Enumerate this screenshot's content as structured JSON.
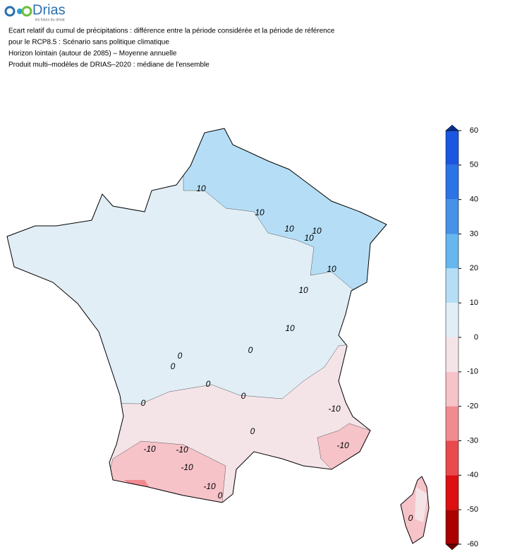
{
  "logo": {
    "name": "Drias",
    "tagline": "les futurs du climat"
  },
  "header": {
    "lines": [
      "Ecart relatif du cumul de précipitations : différence entre la période considérée et la période de référence",
      "pour le RCP8.5 : Scénario sans politique climatique",
      "Horizon lointain (autour de 2085) – Moyenne annuelle",
      "Produit multi–modèles de DRIAS–2020 : médiane de l'ensemble"
    ]
  },
  "colorbar": {
    "ticks": [
      60,
      50,
      40,
      30,
      20,
      10,
      0,
      -10,
      -20,
      -30,
      -40,
      -50,
      -60
    ],
    "colors": [
      "#1a56e0",
      "#2b74e6",
      "#4592e6",
      "#67b6ee",
      "#b5def6",
      "#e1eef6",
      "#f4e4e8",
      "#f6c3c9",
      "#f08b90",
      "#e94a4d",
      "#dc1010",
      "#aa0000"
    ],
    "over_color": "#0a2f8f",
    "under_color": "#6e0000"
  },
  "map": {
    "contour_labels": [
      10,
      10,
      10,
      10,
      10,
      10,
      10,
      10,
      0,
      0,
      0,
      0,
      0,
      0,
      0,
      0,
      0,
      -10,
      -10,
      -10,
      -10,
      -10,
      -10
    ]
  }
}
